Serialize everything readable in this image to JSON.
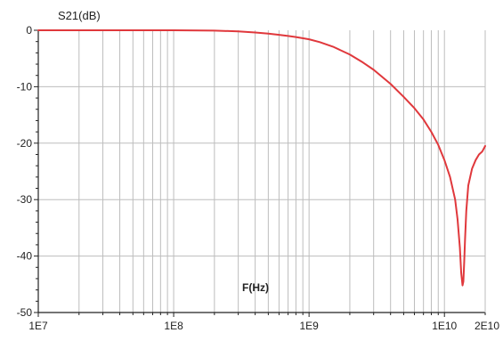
{
  "chart_data": {
    "type": "line",
    "title": "",
    "ylabel": "S21(dB)",
    "xlabel": "F(Hz)",
    "x_scale": "log",
    "xlim": [
      10000000,
      20000000000
    ],
    "ylim": [
      -50,
      0
    ],
    "grid": true,
    "legend": "none",
    "x_ticks": [
      {
        "value": 10000000,
        "label": "1E7"
      },
      {
        "value": 100000000,
        "label": "1E8"
      },
      {
        "value": 1000000000,
        "label": "1E9"
      },
      {
        "value": 10000000000,
        "label": "1E10"
      },
      {
        "value": 20000000000,
        "label": "2E10"
      }
    ],
    "y_ticks": [
      {
        "value": 0,
        "label": "0"
      },
      {
        "value": -10,
        "label": "-10"
      },
      {
        "value": -20,
        "label": "-20"
      },
      {
        "value": -30,
        "label": "-30"
      },
      {
        "value": -40,
        "label": "-40"
      },
      {
        "value": -50,
        "label": "-50"
      }
    ],
    "series": [
      {
        "color": "#e0383c",
        "x": [
          10000000,
          100000000,
          200000000,
          300000000,
          400000000,
          500000000,
          600000000,
          700000000,
          800000000,
          1000000000,
          1200000000,
          1500000000,
          2000000000,
          2500000000,
          3000000000,
          4000000000,
          5000000000,
          6000000000,
          7000000000,
          8000000000,
          9000000000,
          10000000000,
          11000000000,
          12000000000,
          12500000000,
          13000000000,
          13300000000,
          13600000000,
          13800000000,
          14000000000,
          14200000000,
          14500000000,
          15000000000,
          16000000000,
          17000000000,
          18000000000,
          19000000000,
          20000000000
        ],
        "y": [
          0,
          0,
          -0.05,
          -0.2,
          -0.4,
          -0.6,
          -0.8,
          -1.0,
          -1.2,
          -1.6,
          -2.1,
          -2.9,
          -4.3,
          -5.7,
          -7.0,
          -9.5,
          -11.8,
          -13.8,
          -15.8,
          -18.0,
          -20.3,
          -23.0,
          -26.0,
          -30.0,
          -33.5,
          -38.5,
          -43.0,
          -45.2,
          -44.5,
          -41.0,
          -37.0,
          -32.0,
          -27.5,
          -24.5,
          -23.0,
          -22.0,
          -21.5,
          -20.5
        ]
      }
    ]
  }
}
